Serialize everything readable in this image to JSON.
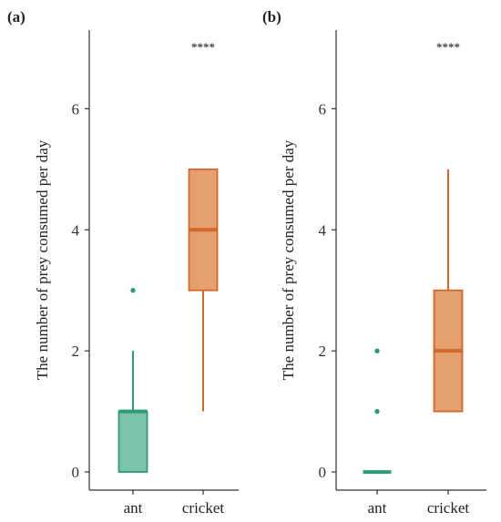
{
  "chart_data": [
    {
      "panel_label": "(a)",
      "type": "box",
      "categories": [
        "ant",
        "cricket"
      ],
      "ylabel": "The number of prey consumed per day",
      "ylim": [
        -0.3,
        7.3
      ],
      "yticks": [
        0,
        2,
        4,
        6
      ],
      "significance": "****",
      "boxes": [
        {
          "category": "ant",
          "color": "#2e9b76",
          "fill": "#7cc3aa",
          "whisker_low": 0,
          "q1": 0,
          "median": 1,
          "q3": 1,
          "whisker_high": 2,
          "outliers": [
            3
          ]
        },
        {
          "category": "cricket",
          "color": "#d3682e",
          "fill": "#e6a070",
          "whisker_low": 1,
          "q1": 3,
          "median": 4,
          "q3": 5,
          "whisker_high": 5,
          "outliers": []
        }
      ]
    },
    {
      "panel_label": "(b)",
      "type": "box",
      "categories": [
        "ant",
        "cricket"
      ],
      "ylabel": "The number of prey consumed per day",
      "ylim": [
        -0.3,
        7.3
      ],
      "yticks": [
        0,
        2,
        4,
        6
      ],
      "significance": "****",
      "boxes": [
        {
          "category": "ant",
          "color": "#2e9b76",
          "fill": "#7cc3aa",
          "whisker_low": 0,
          "q1": 0,
          "median": 0,
          "q3": 0,
          "whisker_high": 0,
          "outliers": [
            1,
            2
          ]
        },
        {
          "category": "cricket",
          "color": "#d3682e",
          "fill": "#e6a070",
          "whisker_low": 1,
          "q1": 1,
          "median": 2,
          "q3": 3,
          "whisker_high": 5,
          "outliers": []
        }
      ]
    }
  ]
}
